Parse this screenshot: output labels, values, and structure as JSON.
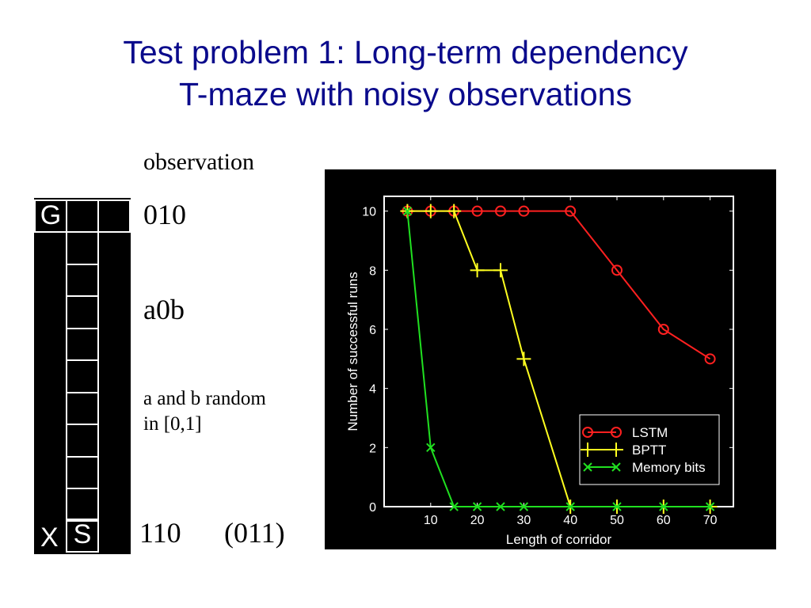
{
  "slide": {
    "title_line1": "Test problem 1: Long-term dependency",
    "title_line2": "T-maze with noisy observations",
    "observation_label": "observation",
    "obs_top": "010",
    "obs_middle": "a0b",
    "note_line1": "a and b random",
    "note_line2": "in [0,1]",
    "obs_bottom": "110",
    "obs_bottom_alt": "(011)",
    "maze": {
      "goal": "G",
      "x": "X",
      "start": "S",
      "corridor_cells": 9
    }
  },
  "colors": {
    "title": "#0a0a8c",
    "lstm": "#ff2020",
    "bptt": "#ffff20",
    "memory": "#20e020"
  },
  "chart_data": {
    "type": "line",
    "xlabel": "Length of corridor",
    "ylabel": "Number of successful runs",
    "xlim": [
      0,
      75
    ],
    "ylim": [
      0,
      10.5
    ],
    "xticks": [
      10,
      20,
      30,
      40,
      50,
      60,
      70
    ],
    "yticks": [
      0,
      2,
      4,
      6,
      8,
      10
    ],
    "legend_position": "bottom-right",
    "series": [
      {
        "name": "LSTM",
        "marker": "o",
        "color": "#ff2020",
        "x": [
          5,
          10,
          15,
          20,
          25,
          30,
          40,
          50,
          60,
          70
        ],
        "y": [
          10,
          10,
          10,
          10,
          10,
          10,
          10,
          8,
          6,
          5
        ]
      },
      {
        "name": "BPTT",
        "marker": "+",
        "color": "#ffff20",
        "x": [
          5,
          10,
          15,
          20,
          25,
          30,
          40,
          50,
          60,
          70
        ],
        "y": [
          10,
          10,
          10,
          8,
          8,
          5,
          0,
          0,
          0,
          0
        ]
      },
      {
        "name": "Memory bits",
        "marker": "x",
        "color": "#20e020",
        "x": [
          5,
          10,
          15,
          20,
          25,
          30,
          40,
          50,
          60,
          70
        ],
        "y": [
          10,
          2,
          0,
          0,
          0,
          0,
          0,
          0,
          0,
          0
        ]
      }
    ]
  }
}
